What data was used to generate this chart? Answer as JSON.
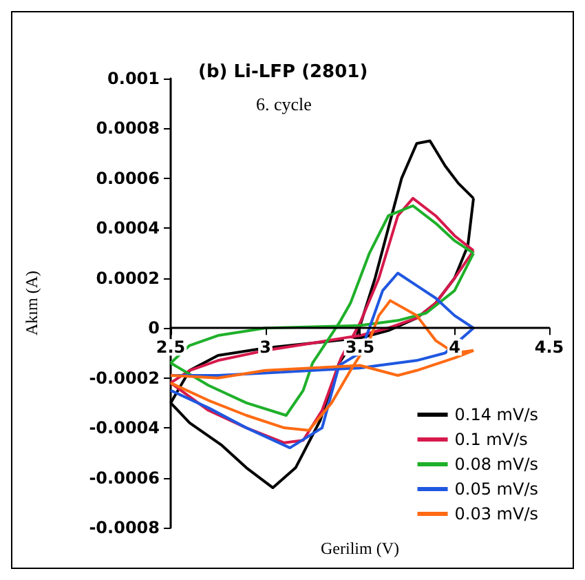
{
  "chart_data": {
    "type": "line",
    "title": "(b) Li-LFP (2801)",
    "subtitle": "6. cycle",
    "xlabel": "Gerilim (V)",
    "ylabel": "Akım (A)",
    "xlim": [
      2.5,
      4.5
    ],
    "xticks": [
      2.5,
      3,
      3.5,
      4,
      4.5
    ],
    "ylim": [
      -0.0008,
      0.001
    ],
    "yticks": [
      -0.0008,
      -0.0006,
      -0.0004,
      -0.0002,
      0,
      0.0002,
      0.0004,
      0.0006,
      0.0008,
      0.001
    ],
    "grid": false,
    "legend": "bottom right",
    "marker": "none",
    "line_style": "solid",
    "series": [
      {
        "name": "0.14 mV/s",
        "color": "#000000",
        "x": [
          2.5,
          2.6,
          2.75,
          3.0,
          3.25,
          3.5,
          3.65,
          3.8,
          3.9,
          4.0,
          4.07,
          4.1
        ],
        "values": [
          -0.0003,
          -0.00017,
          -0.00011,
          -8e-05,
          -6e-05,
          -4e-05,
          -1e-05,
          4e-05,
          0.0001,
          0.0002,
          0.00033,
          0.00052
        ]
      },
      {
        "color": "#000000",
        "x": [
          4.1,
          4.02,
          3.95,
          3.87,
          3.8,
          3.72,
          3.65,
          3.58,
          3.48,
          3.39,
          3.29,
          3.16,
          3.04,
          2.9,
          2.77,
          2.6,
          2.5
        ],
        "values": [
          0.00052,
          0.00058,
          0.00065,
          0.00075,
          0.00074,
          0.0006,
          0.0004,
          0.0002,
          -4e-05,
          -0.00014,
          -0.00037,
          -0.00056,
          -0.00064,
          -0.00056,
          -0.00047,
          -0.00038,
          -0.0003
        ]
      },
      {
        "name": "0.1 mV/s",
        "color": "#d6194b",
        "x": [
          2.5,
          2.6,
          2.75,
          3.0,
          3.25,
          3.5,
          3.65,
          3.8,
          3.9,
          4.0,
          4.1
        ],
        "values": [
          -0.00022,
          -0.00017,
          -0.00013,
          -9e-05,
          -6e-05,
          -3e-05,
          0.0,
          4e-05,
          0.0001,
          0.0002,
          0.00031
        ]
      },
      {
        "color": "#d6194b",
        "x": [
          4.1,
          4.0,
          3.9,
          3.78,
          3.7,
          3.6,
          3.5,
          3.4,
          3.3,
          3.2,
          3.1,
          2.9,
          2.7,
          2.5
        ],
        "values": [
          0.00031,
          0.00037,
          0.00045,
          0.00052,
          0.00045,
          0.0002,
          2e-05,
          -0.00012,
          -0.00033,
          -0.00045,
          -0.00046,
          -0.0004,
          -0.00033,
          -0.00022
        ]
      },
      {
        "name": "0.08 mV/s",
        "color": "#1fb02a",
        "x": [
          2.5,
          2.6,
          2.75,
          3.0,
          3.5,
          3.7,
          3.85,
          4.0,
          4.1
        ],
        "values": [
          -0.00014,
          -7e-05,
          -3e-05,
          0.0,
          1e-05,
          3e-05,
          6e-05,
          0.00015,
          0.0003
        ]
      },
      {
        "color": "#1fb02a",
        "x": [
          4.1,
          4.0,
          3.9,
          3.78,
          3.65,
          3.55,
          3.45,
          3.39,
          3.25,
          3.2,
          3.11,
          2.9,
          2.7,
          2.5
        ],
        "values": [
          0.0003,
          0.00035,
          0.00042,
          0.00049,
          0.00045,
          0.0003,
          0.0001,
          2e-05,
          -0.00014,
          -0.00025,
          -0.00035,
          -0.0003,
          -0.00023,
          -0.00014
        ]
      },
      {
        "name": "0.05 mV/s",
        "color": "#1f57e0",
        "x": [
          2.5,
          2.75,
          3.0,
          3.5,
          3.6,
          3.8,
          3.95,
          4.1
        ],
        "values": [
          -0.00019,
          -0.00019,
          -0.00018,
          -0.00016,
          -0.00015,
          -0.00013,
          -0.0001,
          0.0
        ]
      },
      {
        "color": "#1f57e0",
        "x": [
          4.1,
          4.0,
          3.9,
          3.8,
          3.7,
          3.62,
          3.55,
          3.5,
          3.39,
          3.3,
          3.13,
          2.9,
          2.7,
          2.5
        ],
        "values": [
          0.0,
          5e-05,
          0.00012,
          0.00017,
          0.00022,
          0.00015,
          0.0,
          -0.0001,
          -0.00015,
          -0.0004,
          -0.00048,
          -0.0004,
          -0.00032,
          -0.00025
        ]
      },
      {
        "name": "0.03 mV/s",
        "color": "#ff6a13",
        "x": [
          2.5,
          2.75,
          3.0,
          3.5,
          3.7,
          3.8,
          4.0,
          4.1
        ],
        "values": [
          -0.00019,
          -0.0002,
          -0.00017,
          -0.00015,
          -0.00019,
          -0.00017,
          -0.00012,
          -9e-05
        ]
      },
      {
        "color": "#ff6a13",
        "x": [
          4.1,
          4.0,
          3.9,
          3.8,
          3.66,
          3.6,
          3.55,
          3.45,
          3.35,
          3.23,
          3.1,
          2.9,
          2.7,
          2.5
        ],
        "values": [
          -9e-05,
          -0.0001,
          -5e-05,
          5e-05,
          0.00011,
          5e-05,
          -5e-05,
          -0.00017,
          -0.0003,
          -0.00041,
          -0.0004,
          -0.00035,
          -0.00029,
          -0.00022
        ]
      }
    ]
  }
}
